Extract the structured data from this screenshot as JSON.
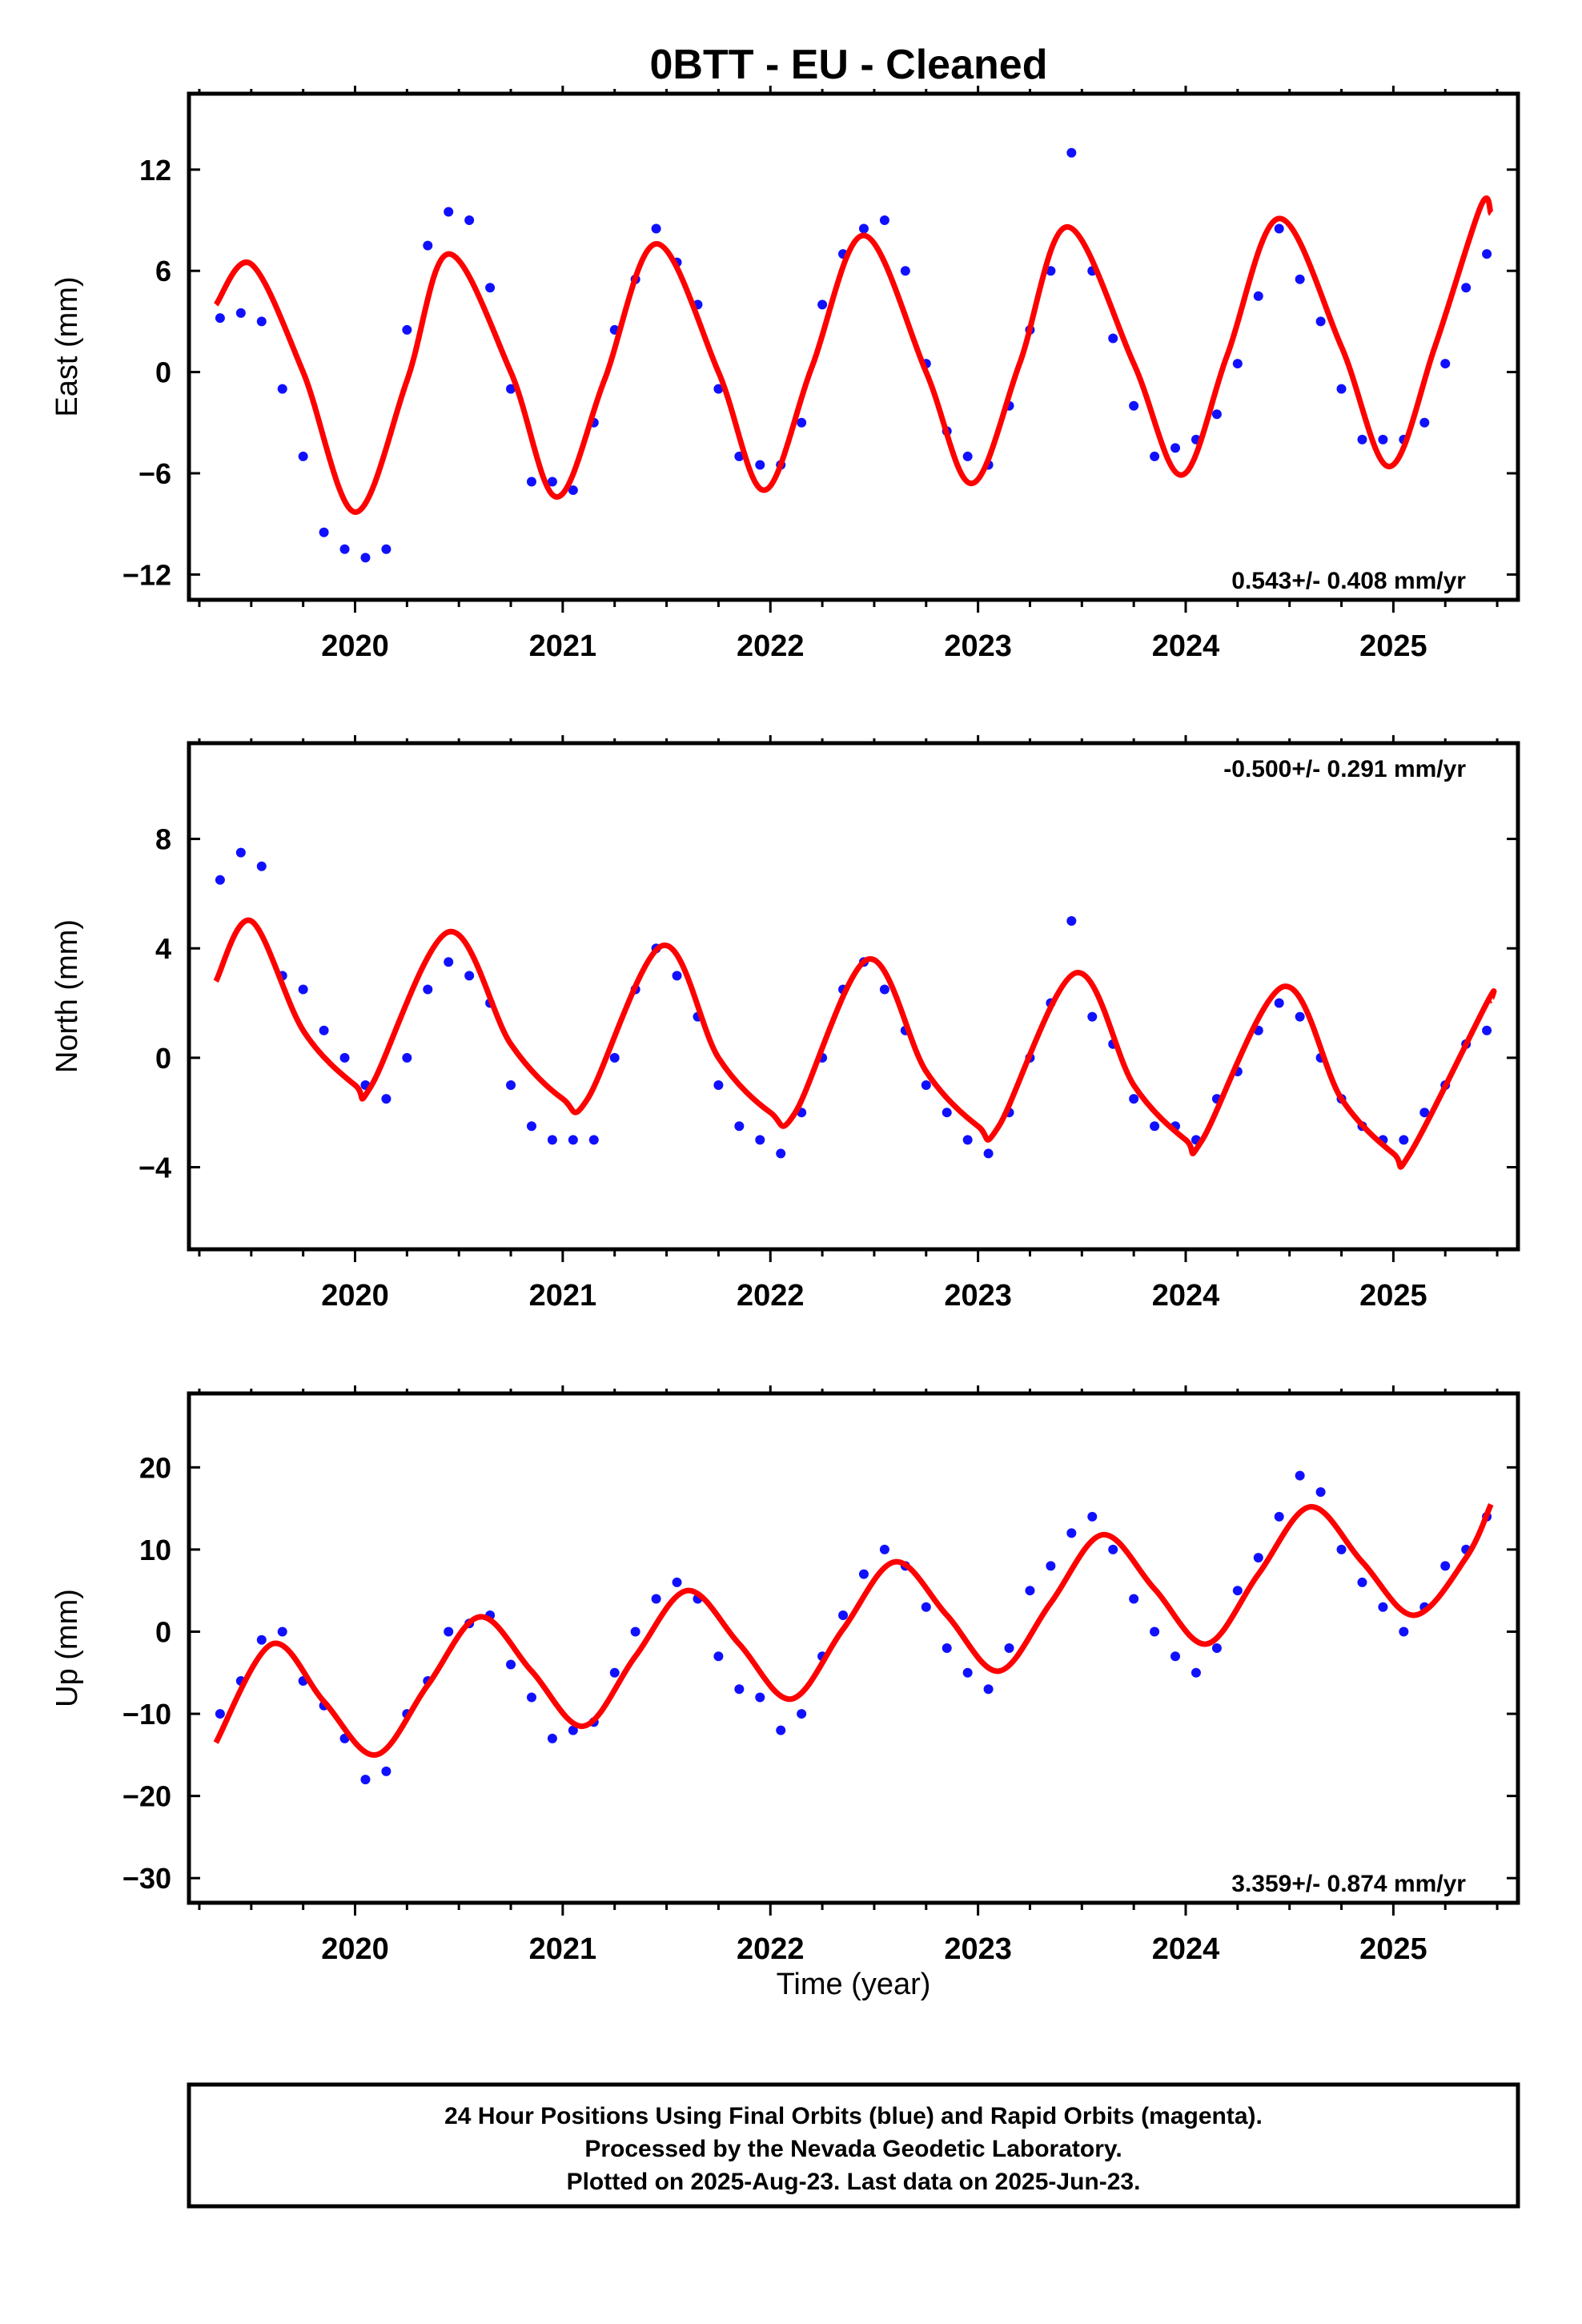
{
  "title": "0BTT  - EU - Cleaned",
  "x_tick_labels": [
    "2020",
    "2021",
    "2022",
    "2023",
    "2024",
    "2025"
  ],
  "x_axis_label": "Time (year)",
  "footer": {
    "line1": "24 Hour Positions Using Final Orbits (blue) and Rapid Orbits (magenta).",
    "line2": "Processed by the Nevada Geodetic Laboratory.",
    "line3": "Plotted on 2025-Aug-23. Last data on 2025-Jun-23."
  },
  "colors": {
    "points": "#1010ff",
    "model": "#ff0000",
    "axes": "#000000"
  },
  "chart_data": [
    {
      "type": "scatter",
      "component": "east",
      "ylabel": "East (mm)",
      "rate_label": "0.543+/- 0.408 mm/yr",
      "rate_position": "bottom-right",
      "xlim": [
        2019.2,
        2025.6
      ],
      "ylim": [
        -13.5,
        16.5
      ],
      "yticks": [
        -12,
        -6,
        0,
        6,
        12
      ],
      "ytick_labels": [
        "−12",
        "−6",
        "0",
        "6",
        "12"
      ],
      "model_series": {
        "name": "model",
        "x": [
          2019.33,
          2019.5,
          2019.75,
          2020.0,
          2020.25,
          2020.45,
          2020.75,
          2020.97,
          2021.2,
          2021.45,
          2021.75,
          2021.97,
          2022.2,
          2022.45,
          2022.75,
          2022.97,
          2023.2,
          2023.43,
          2023.75,
          2023.98,
          2024.2,
          2024.45,
          2024.75,
          2024.98,
          2025.2,
          2025.42,
          2025.47
        ],
        "y": [
          4.0,
          6.4,
          0.0,
          -8.3,
          -0.5,
          7.0,
          0.0,
          -7.4,
          -0.5,
          7.6,
          0.0,
          -7.0,
          0.3,
          8.1,
          0.0,
          -6.6,
          0.5,
          8.6,
          0.5,
          -6.1,
          1.0,
          9.1,
          1.5,
          -5.6,
          1.5,
          9.8,
          9.4
        ]
      },
      "observations": {
        "x": [
          2019.35,
          2019.45,
          2019.55,
          2019.65,
          2019.75,
          2019.85,
          2019.95,
          2020.05,
          2020.15,
          2020.25,
          2020.35,
          2020.45,
          2020.55,
          2020.65,
          2020.75,
          2020.85,
          2020.95,
          2021.05,
          2021.15,
          2021.25,
          2021.35,
          2021.45,
          2021.55,
          2021.65,
          2021.75,
          2021.85,
          2021.95,
          2022.05,
          2022.15,
          2022.25,
          2022.35,
          2022.45,
          2022.55,
          2022.65,
          2022.75,
          2022.85,
          2022.95,
          2023.05,
          2023.15,
          2023.25,
          2023.35,
          2023.45,
          2023.55,
          2023.65,
          2023.75,
          2023.85,
          2023.95,
          2024.05,
          2024.15,
          2024.25,
          2024.35,
          2024.45,
          2024.55,
          2024.65,
          2024.75,
          2024.85,
          2024.95,
          2025.05,
          2025.15,
          2025.25,
          2025.35,
          2025.45
        ],
        "y": [
          3.2,
          3.5,
          3.0,
          -1.0,
          -5.0,
          -9.5,
          -10.5,
          -11.0,
          -10.5,
          2.5,
          7.5,
          9.5,
          9.0,
          5.0,
          -1.0,
          -6.5,
          -6.5,
          -7.0,
          -3.0,
          2.5,
          5.5,
          8.5,
          6.5,
          4.0,
          -1.0,
          -5.0,
          -5.5,
          -5.5,
          -3.0,
          4.0,
          7.0,
          8.5,
          9.0,
          6.0,
          0.5,
          -3.5,
          -5.0,
          -5.5,
          -2.0,
          2.5,
          6.0,
          13.0,
          6.0,
          2.0,
          -2.0,
          -5.0,
          -4.5,
          -4.0,
          -2.5,
          0.5,
          4.5,
          8.5,
          5.5,
          3.0,
          -1.0,
          -4.0,
          -4.0,
          -4.0,
          -3.0,
          0.5,
          5.0,
          7.0
        ]
      }
    },
    {
      "type": "scatter",
      "component": "north",
      "ylabel": "North (mm)",
      "rate_label": "-0.500+/- 0.291 mm/yr",
      "rate_position": "top-right",
      "xlim": [
        2019.2,
        2025.6
      ],
      "ylim": [
        -7.0,
        11.5
      ],
      "yticks": [
        -4,
        0,
        4,
        8
      ],
      "ytick_labels": [
        "−4",
        "0",
        "4",
        "8"
      ],
      "model_series": {
        "name": "model",
        "x": [
          2019.33,
          2019.5,
          2019.75,
          2020.0,
          2020.08,
          2020.45,
          2020.75,
          2021.0,
          2021.12,
          2021.48,
          2021.75,
          2022.0,
          2022.12,
          2022.47,
          2022.75,
          2023.0,
          2023.1,
          2023.47,
          2023.75,
          2024.0,
          2024.08,
          2024.47,
          2024.75,
          2025.0,
          2025.08,
          2025.45,
          2025.47
        ],
        "y": [
          2.8,
          5.0,
          1.0,
          -1.0,
          -1.0,
          4.6,
          0.5,
          -1.5,
          -1.5,
          4.1,
          0.0,
          -2.0,
          -2.0,
          3.6,
          -0.5,
          -2.5,
          -2.5,
          3.1,
          -1.0,
          -3.0,
          -3.0,
          2.6,
          -1.5,
          -3.5,
          -3.5,
          2.0,
          2.1
        ]
      },
      "observations": {
        "x": [
          2019.35,
          2019.45,
          2019.55,
          2019.65,
          2019.75,
          2019.85,
          2019.95,
          2020.05,
          2020.15,
          2020.25,
          2020.35,
          2020.45,
          2020.55,
          2020.65,
          2020.75,
          2020.85,
          2020.95,
          2021.05,
          2021.15,
          2021.25,
          2021.35,
          2021.45,
          2021.55,
          2021.65,
          2021.75,
          2021.85,
          2021.95,
          2022.05,
          2022.15,
          2022.25,
          2022.35,
          2022.45,
          2022.55,
          2022.65,
          2022.75,
          2022.85,
          2022.95,
          2023.05,
          2023.15,
          2023.25,
          2023.35,
          2023.45,
          2023.55,
          2023.65,
          2023.75,
          2023.85,
          2023.95,
          2024.05,
          2024.15,
          2024.25,
          2024.35,
          2024.45,
          2024.55,
          2024.65,
          2024.75,
          2024.85,
          2024.95,
          2025.05,
          2025.15,
          2025.25,
          2025.35,
          2025.45
        ],
        "y": [
          6.5,
          7.5,
          7.0,
          3.0,
          2.5,
          1.0,
          0.0,
          -1.0,
          -1.5,
          0.0,
          2.5,
          3.5,
          3.0,
          2.0,
          -1.0,
          -2.5,
          -3.0,
          -3.0,
          -3.0,
          0.0,
          2.5,
          4.0,
          3.0,
          1.5,
          -1.0,
          -2.5,
          -3.0,
          -3.5,
          -2.0,
          0.0,
          2.5,
          3.5,
          2.5,
          1.0,
          -1.0,
          -2.0,
          -3.0,
          -3.5,
          -2.0,
          0.0,
          2.0,
          5.0,
          1.5,
          0.5,
          -1.5,
          -2.5,
          -2.5,
          -3.0,
          -1.5,
          -0.5,
          1.0,
          2.0,
          1.5,
          0.0,
          -1.5,
          -2.5,
          -3.0,
          -3.0,
          -2.0,
          -1.0,
          0.5,
          1.0
        ]
      }
    },
    {
      "type": "scatter",
      "component": "up",
      "ylabel": "Up (mm)",
      "rate_label": "3.359+/- 0.874 mm/yr",
      "rate_position": "bottom-right",
      "xlim": [
        2019.2,
        2025.6
      ],
      "ylim": [
        -33,
        29
      ],
      "yticks": [
        -30,
        -20,
        -10,
        0,
        10,
        20
      ],
      "ytick_labels": [
        "−30",
        "−20",
        "−10",
        "0",
        "10",
        "20"
      ],
      "model_series": {
        "name": "model",
        "x": [
          2019.33,
          2019.6,
          2019.85,
          2020.1,
          2020.35,
          2020.6,
          2020.85,
          2021.1,
          2021.35,
          2021.6,
          2021.85,
          2022.1,
          2022.35,
          2022.6,
          2022.85,
          2023.1,
          2023.35,
          2023.6,
          2023.85,
          2024.1,
          2024.35,
          2024.6,
          2024.85,
          2025.1,
          2025.35,
          2025.47
        ],
        "y": [
          -13.5,
          -1.5,
          -8.5,
          -15.0,
          -6.5,
          1.8,
          -4.8,
          -11.5,
          -3.0,
          5.0,
          -1.5,
          -8.2,
          0.3,
          8.5,
          2.0,
          -4.8,
          3.5,
          11.8,
          5.2,
          -1.5,
          7.0,
          15.2,
          8.5,
          2.0,
          9.0,
          15.5
        ]
      },
      "observations": {
        "x": [
          2019.35,
          2019.45,
          2019.55,
          2019.65,
          2019.75,
          2019.85,
          2019.95,
          2020.05,
          2020.15,
          2020.25,
          2020.35,
          2020.45,
          2020.55,
          2020.65,
          2020.75,
          2020.85,
          2020.95,
          2021.05,
          2021.15,
          2021.25,
          2021.35,
          2021.45,
          2021.55,
          2021.65,
          2021.75,
          2021.85,
          2021.95,
          2022.05,
          2022.15,
          2022.25,
          2022.35,
          2022.45,
          2022.55,
          2022.65,
          2022.75,
          2022.85,
          2022.95,
          2023.05,
          2023.15,
          2023.25,
          2023.35,
          2023.45,
          2023.55,
          2023.65,
          2023.75,
          2023.85,
          2023.95,
          2024.05,
          2024.15,
          2024.25,
          2024.35,
          2024.45,
          2024.55,
          2024.65,
          2024.75,
          2024.85,
          2024.95,
          2025.05,
          2025.15,
          2025.25,
          2025.35,
          2025.45
        ],
        "y": [
          -10.0,
          -6.0,
          -1.0,
          0.0,
          -6.0,
          -9.0,
          -13.0,
          -18.0,
          -17.0,
          -10.0,
          -6.0,
          0.0,
          1.0,
          2.0,
          -4.0,
          -8.0,
          -13.0,
          -12.0,
          -11.0,
          -5.0,
          0.0,
          4.0,
          6.0,
          4.0,
          -3.0,
          -7.0,
          -8.0,
          -12.0,
          -10.0,
          -3.0,
          2.0,
          7.0,
          10.0,
          8.0,
          3.0,
          -2.0,
          -5.0,
          -7.0,
          -2.0,
          5.0,
          8.0,
          12.0,
          14.0,
          10.0,
          4.0,
          0.0,
          -3.0,
          -5.0,
          -2.0,
          5.0,
          9.0,
          14.0,
          19.0,
          17.0,
          10.0,
          6.0,
          3.0,
          0.0,
          3.0,
          8.0,
          10.0,
          14.0
        ]
      }
    }
  ]
}
